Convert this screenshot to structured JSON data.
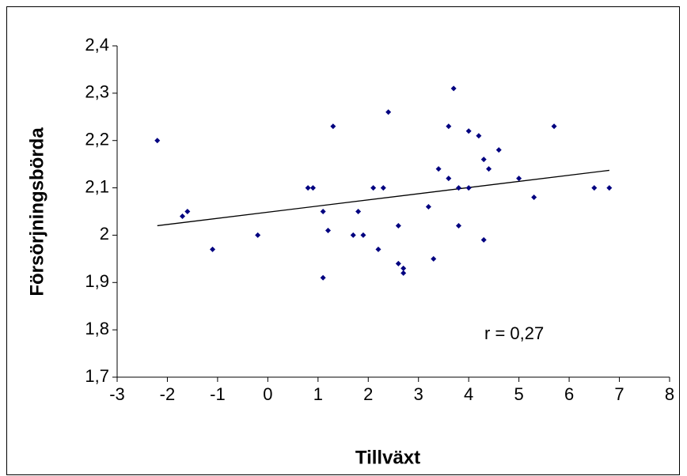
{
  "chart_data": {
    "type": "scatter",
    "x_label": "Tillväxt",
    "y_label": "Försörjningsbörda",
    "annotation": "r = 0,27",
    "x": [
      -2.2,
      -1.7,
      -1.6,
      -1.1,
      -0.2,
      0.8,
      0.9,
      1.1,
      1.1,
      1.2,
      1.3,
      1.7,
      1.8,
      1.9,
      2.1,
      2.2,
      2.3,
      2.4,
      2.6,
      2.6,
      2.7,
      2.7,
      3.2,
      3.3,
      3.4,
      3.6,
      3.6,
      3.7,
      3.8,
      3.8,
      4.0,
      4.0,
      4.2,
      4.3,
      4.3,
      4.4,
      4.6,
      5.0,
      5.3,
      5.7,
      6.5,
      6.8
    ],
    "values": [
      2.2,
      2.04,
      2.05,
      1.97,
      2.0,
      2.1,
      2.1,
      2.05,
      1.91,
      2.01,
      2.23,
      2.0,
      2.05,
      2.0,
      2.1,
      1.97,
      2.1,
      2.26,
      2.02,
      1.94,
      1.93,
      1.92,
      2.06,
      1.95,
      2.14,
      2.12,
      2.23,
      2.31,
      2.1,
      2.02,
      2.22,
      2.1,
      2.21,
      2.16,
      1.99,
      2.14,
      2.18,
      2.12,
      2.08,
      2.23,
      2.1,
      2.1
    ],
    "color": "#000080",
    "trendline": {
      "x": [
        -2.2,
        6.8
      ],
      "values": [
        2.02,
        2.137
      ],
      "color": "#000000"
    },
    "xlim": [
      -3,
      8
    ],
    "xticks": [
      -3,
      -2,
      -1,
      0,
      1,
      2,
      3,
      4,
      5,
      6,
      7,
      8
    ],
    "ylim": [
      1.7,
      2.4
    ],
    "yticks": [
      {
        "value": 1.7,
        "label": "1,7"
      },
      {
        "value": 1.8,
        "label": "1,8"
      },
      {
        "value": 1.9,
        "label": "1,9"
      },
      2,
      {
        "value": 2.1,
        "label": "2,1"
      },
      {
        "value": 2.2,
        "label": "2,2"
      },
      {
        "value": 2.3,
        "label": "2,3"
      },
      {
        "value": 2.4,
        "label": "2,4"
      }
    ],
    "grid": false
  }
}
